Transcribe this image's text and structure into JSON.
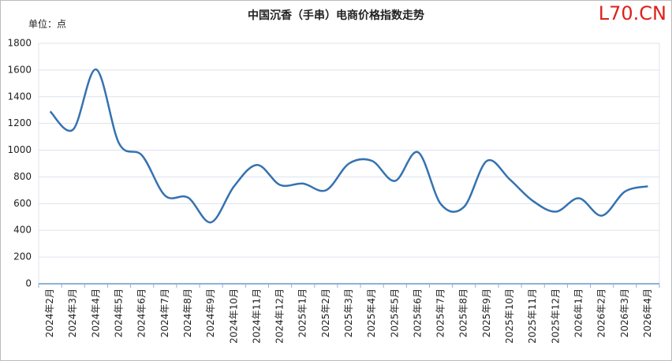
{
  "chart_data": {
    "type": "line",
    "title": "中国沉香（手串）电商价格指数走势",
    "unit_label": "单位：点",
    "watermark": "L70.CN",
    "categories": [
      "2024年2月",
      "2024年3月",
      "2024年4月",
      "2024年5月",
      "2024年6月",
      "2024年7月",
      "2024年8月",
      "2024年9月",
      "2024年10月",
      "2024年11月",
      "2024年12月",
      "2025年1月",
      "2025年2月",
      "2025年3月",
      "2025年4月",
      "2025年5月",
      "2025年6月",
      "2025年7月",
      "2025年8月",
      "2025年9月",
      "2025年10月",
      "2025年11月",
      "2025年12月",
      "2026年1月",
      "2026年2月",
      "2026年3月",
      "2026年4月"
    ],
    "series": [
      {
        "color": "#3572b0",
        "values": [
          1290,
          1155,
          1605,
          1050,
          960,
          660,
          645,
          460,
          730,
          890,
          740,
          750,
          700,
          900,
          920,
          770,
          985,
          595,
          575,
          920,
          780,
          620,
          540,
          640,
          510,
          690,
          730
        ]
      }
    ],
    "ylim": [
      0,
      1800
    ],
    "yticks": [
      0,
      200,
      400,
      600,
      800,
      1000,
      1200,
      1400,
      1600,
      1800
    ],
    "grid": true,
    "smooth": true
  }
}
